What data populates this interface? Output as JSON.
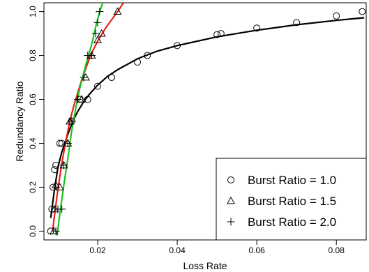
{
  "chart_data": {
    "type": "scatter",
    "xlabel": "Loss Rate",
    "ylabel": "Redundancy Ratio",
    "xlim": [
      0.0065,
      0.0875
    ],
    "ylim": [
      -0.04,
      1.04
    ],
    "x_ticks": [
      0.02,
      0.04,
      0.06,
      0.08
    ],
    "x_tick_labels": [
      "0.02",
      "0.04",
      "0.06",
      "0.08"
    ],
    "y_ticks": [
      0.0,
      0.2,
      0.4,
      0.6,
      0.8,
      1.0
    ],
    "y_tick_labels": [
      "0.0",
      "0.2",
      "0.4",
      "0.6",
      "0.8",
      "1.0"
    ],
    "grid": false,
    "legend_position": "bottom-right",
    "series": [
      {
        "name": "Burst Ratio = 1.0",
        "marker": "circle",
        "color": "#000000",
        "fit_color": "#000000",
        "x": [
          0.0082,
          0.0085,
          0.0088,
          0.0092,
          0.0095,
          0.0105,
          0.011,
          0.0135,
          0.0155,
          0.0175,
          0.02,
          0.0235,
          0.03,
          0.0325,
          0.04,
          0.05,
          0.051,
          0.06,
          0.07,
          0.08,
          0.0865
        ],
        "y": [
          0.0,
          0.1,
          0.2,
          0.28,
          0.3,
          0.4,
          0.4,
          0.5,
          0.6,
          0.6,
          0.66,
          0.7,
          0.77,
          0.8,
          0.845,
          0.895,
          0.9,
          0.925,
          0.95,
          0.98,
          1.0
        ],
        "fit": [
          [
            0.0082,
            0.06
          ],
          [
            0.009,
            0.17
          ],
          [
            0.0095,
            0.23
          ],
          [
            0.01,
            0.29
          ],
          [
            0.011,
            0.36
          ],
          [
            0.012,
            0.415
          ],
          [
            0.013,
            0.465
          ],
          [
            0.014,
            0.51
          ],
          [
            0.015,
            0.545
          ],
          [
            0.0165,
            0.59
          ],
          [
            0.018,
            0.625
          ],
          [
            0.02,
            0.665
          ],
          [
            0.0225,
            0.705
          ],
          [
            0.025,
            0.735
          ],
          [
            0.03,
            0.785
          ],
          [
            0.035,
            0.82
          ],
          [
            0.04,
            0.845
          ],
          [
            0.05,
            0.885
          ],
          [
            0.06,
            0.915
          ],
          [
            0.07,
            0.94
          ],
          [
            0.08,
            0.96
          ],
          [
            0.087,
            0.972
          ]
        ]
      },
      {
        "name": "Burst Ratio = 1.5",
        "marker": "triangle",
        "color": "#000000",
        "fit_color": "#e8201a",
        "x": [
          0.009,
          0.0092,
          0.0095,
          0.0105,
          0.0115,
          0.0125,
          0.013,
          0.016,
          0.017,
          0.0185,
          0.02,
          0.021,
          0.025
        ],
        "y": [
          0.0,
          0.1,
          0.21,
          0.2,
          0.3,
          0.4,
          0.5,
          0.6,
          0.7,
          0.8,
          0.87,
          0.9,
          1.0
        ],
        "fit": [
          [
            0.0087,
            0.0
          ],
          [
            0.009,
            0.05
          ],
          [
            0.0095,
            0.12
          ],
          [
            0.01,
            0.19
          ],
          [
            0.011,
            0.31
          ],
          [
            0.012,
            0.41
          ],
          [
            0.013,
            0.5
          ],
          [
            0.014,
            0.57
          ],
          [
            0.015,
            0.63
          ],
          [
            0.016,
            0.69
          ],
          [
            0.017,
            0.74
          ],
          [
            0.018,
            0.79
          ],
          [
            0.019,
            0.83
          ],
          [
            0.02,
            0.865
          ],
          [
            0.021,
            0.895
          ],
          [
            0.022,
            0.925
          ],
          [
            0.023,
            0.95
          ],
          [
            0.024,
            0.975
          ],
          [
            0.025,
            1.0
          ],
          [
            0.0265,
            1.04
          ]
        ]
      },
      {
        "name": "Burst Ratio = 2.0",
        "marker": "plus",
        "color": "#000000",
        "fit_color": "#1fc21f",
        "x": [
          0.0095,
          0.01,
          0.011,
          0.0115,
          0.0125,
          0.0135,
          0.015,
          0.0165,
          0.0175,
          0.0185,
          0.0195,
          0.02,
          0.0205
        ],
        "y": [
          0.0,
          0.1,
          0.1,
          0.3,
          0.4,
          0.5,
          0.6,
          0.7,
          0.8,
          0.8,
          0.9,
          0.95,
          1.0
        ],
        "fit": [
          [
            0.0098,
            -0.02
          ],
          [
            0.0105,
            0.08
          ],
          [
            0.0115,
            0.21
          ],
          [
            0.0125,
            0.33
          ],
          [
            0.0135,
            0.46
          ],
          [
            0.0145,
            0.56
          ],
          [
            0.0155,
            0.65
          ],
          [
            0.0165,
            0.72
          ],
          [
            0.0175,
            0.79
          ],
          [
            0.0185,
            0.85
          ],
          [
            0.0195,
            0.93
          ],
          [
            0.0205,
            1.0
          ],
          [
            0.0213,
            1.04
          ]
        ]
      }
    ]
  }
}
